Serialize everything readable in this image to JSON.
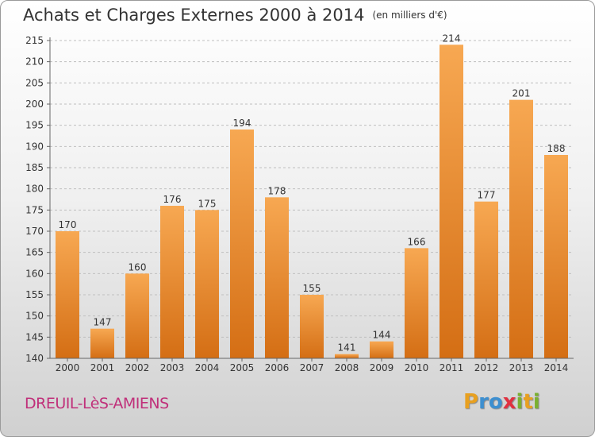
{
  "title": "Achats et Charges Externes 2000 à 2014",
  "subtitle": "(en milliers d'€)",
  "place": "DREUIL-LèS-AMIENS",
  "logo": {
    "letters": [
      "P",
      "r",
      "o",
      "x",
      "i",
      "t",
      "i"
    ],
    "colors": [
      "#e8a020",
      "#3d8fd0",
      "#3d8fd0",
      "#e03040",
      "#7ab030",
      "#e8a020",
      "#7ab030"
    ]
  },
  "colors": {
    "bar_light": "#f7a852",
    "bar_dark": "#d46e14",
    "grid": "#bfbfbf",
    "axis": "#666666",
    "text": "#333333"
  },
  "chart_data": {
    "type": "bar",
    "categories": [
      "2000",
      "2001",
      "2002",
      "2003",
      "2004",
      "2005",
      "2006",
      "2007",
      "2008",
      "2009",
      "2010",
      "2011",
      "2012",
      "2013",
      "2014"
    ],
    "values": [
      170,
      147,
      160,
      176,
      175,
      194,
      178,
      155,
      141,
      144,
      166,
      214,
      177,
      201,
      188
    ],
    "ylim": [
      140,
      215
    ],
    "yticks": [
      140,
      145,
      150,
      155,
      160,
      165,
      170,
      175,
      180,
      185,
      190,
      195,
      200,
      205,
      210,
      215
    ],
    "grid": true,
    "xlabel": "",
    "ylabel": ""
  }
}
